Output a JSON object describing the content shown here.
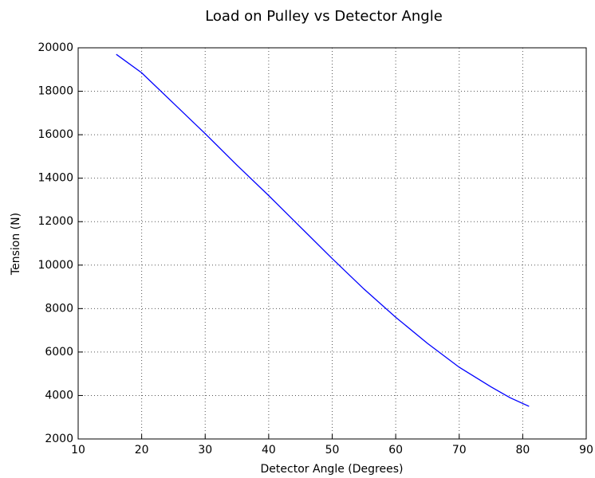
{
  "chart_data": {
    "type": "line",
    "title": "Load on Pulley vs Detector Angle",
    "x_label": "Detector Angle (Degrees)",
    "y_label": "Tension (N)",
    "x": [
      16,
      20,
      25,
      30,
      35,
      40,
      45,
      50,
      55,
      60,
      65,
      70,
      75,
      78,
      81
    ],
    "series": [
      {
        "name": "Tension",
        "color": "#0000ff",
        "values": [
          19700,
          18850,
          17450,
          16050,
          14600,
          13200,
          11750,
          10300,
          8900,
          7600,
          6400,
          5300,
          4400,
          3900,
          3500
        ]
      }
    ],
    "xlim": [
      10,
      90
    ],
    "xticks": [
      10,
      20,
      30,
      40,
      50,
      60,
      70,
      80,
      90
    ],
    "ylim": [
      2000,
      20000
    ],
    "yticks": [
      2000,
      4000,
      6000,
      8000,
      10000,
      12000,
      14000,
      16000,
      18000,
      20000
    ],
    "grid": true
  }
}
